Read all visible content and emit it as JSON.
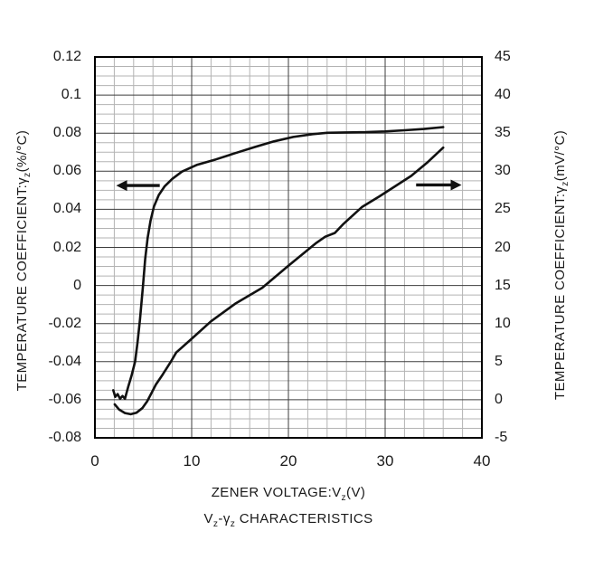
{
  "chart_data": {
    "type": "line",
    "title": "",
    "xlabel": "ZENER VOLTAGE:Vz(V)",
    "ylabel_left": "TEMPERATURE COEFFICIENT:gamma_z(%/degC)",
    "ylabel_right": "TEMPERATURE COEFFICIENT:gamma_z(mV/degC)",
    "caption": "Vz-gamma_z CHARACTERISTICS",
    "grid": "on",
    "legend": "none",
    "x_range": [
      0,
      40
    ],
    "x_major_step": 10,
    "x_minor_step": 2,
    "y_left_range": [
      -0.08,
      0.12
    ],
    "y_left_major_step": 0.02,
    "y_left_minor_step": 0.005,
    "y_right_range": [
      -5,
      45
    ],
    "x_ticks": [
      "0",
      "10",
      "20",
      "30",
      "40"
    ],
    "y_left_ticks": [
      "0.12",
      "0.1",
      "0.08",
      "0.06",
      "0.04",
      "0.02",
      "0",
      "-0.02",
      "-0.04",
      "-0.06",
      "-0.08"
    ],
    "y_right_ticks": [
      "45",
      "40",
      "35",
      "30",
      "25",
      "20",
      "15",
      "10",
      "5",
      "0",
      "-5"
    ],
    "series": [
      {
        "name": "temp-coefficient-percent-per-degC",
        "axis": "left",
        "units": "%/degC",
        "points": [
          [
            1.9,
            -0.055
          ],
          [
            2.1,
            -0.0585
          ],
          [
            2.35,
            -0.057
          ],
          [
            2.6,
            -0.0595
          ],
          [
            2.85,
            -0.058
          ],
          [
            3.1,
            -0.0595
          ],
          [
            3.45,
            -0.053
          ],
          [
            3.8,
            -0.047
          ],
          [
            4.15,
            -0.04
          ],
          [
            4.4,
            -0.03
          ],
          [
            4.65,
            -0.018
          ],
          [
            4.95,
            -0.001
          ],
          [
            5.2,
            0.014
          ],
          [
            5.45,
            0.025
          ],
          [
            5.75,
            0.034
          ],
          [
            6.1,
            0.0415
          ],
          [
            6.6,
            0.0475
          ],
          [
            7.2,
            0.052
          ],
          [
            8.0,
            0.056
          ],
          [
            9.0,
            0.0598
          ],
          [
            10.5,
            0.0633
          ],
          [
            12.5,
            0.0662
          ],
          [
            14.5,
            0.0695
          ],
          [
            16.5,
            0.0727
          ],
          [
            18.5,
            0.0757
          ],
          [
            20.5,
            0.078
          ],
          [
            22.5,
            0.0795
          ],
          [
            24.0,
            0.0802
          ],
          [
            26.0,
            0.0804
          ],
          [
            28.0,
            0.0805
          ],
          [
            30.0,
            0.0809
          ],
          [
            32.0,
            0.0815
          ],
          [
            34.0,
            0.0822
          ],
          [
            36.0,
            0.0832
          ]
        ]
      },
      {
        "name": "temp-coefficient-mV-per-degC",
        "axis": "right",
        "units": "mV/degC",
        "points": [
          [
            2.05,
            -0.6
          ],
          [
            2.5,
            -1.3
          ],
          [
            3.1,
            -1.75
          ],
          [
            3.7,
            -1.9
          ],
          [
            4.3,
            -1.7
          ],
          [
            4.9,
            -1.1
          ],
          [
            5.4,
            -0.2
          ],
          [
            5.9,
            1.0
          ],
          [
            6.3,
            2.0
          ],
          [
            7.0,
            3.3
          ],
          [
            7.8,
            4.9
          ],
          [
            8.4,
            6.2
          ],
          [
            10.0,
            8.0
          ],
          [
            12.0,
            10.3
          ],
          [
            14.5,
            12.6
          ],
          [
            17.3,
            14.7
          ],
          [
            20.0,
            17.6
          ],
          [
            22.9,
            20.6
          ],
          [
            23.8,
            21.4
          ],
          [
            24.8,
            21.9
          ],
          [
            25.7,
            23.1
          ],
          [
            27.6,
            25.3
          ],
          [
            29.4,
            26.7
          ],
          [
            31.0,
            28.0
          ],
          [
            32.7,
            29.4
          ],
          [
            34.4,
            31.2
          ],
          [
            36.0,
            33.1
          ]
        ]
      }
    ],
    "arrows": [
      {
        "name": "points-to-left-axis",
        "direction": "left",
        "axis": "left",
        "y_value": 0.0525,
        "x_tail": 6.7,
        "x_head": 2.2
      },
      {
        "name": "points-to-right-axis",
        "direction": "right",
        "axis": "right",
        "y_value": 28.2,
        "x_tail": 33.2,
        "x_head": 37.9
      }
    ],
    "colors": {
      "curve": "#111111",
      "border": "#000000",
      "grid_major": "#3d3d3d",
      "grid_minor": "#b3b3b3",
      "text": "#1a1a1a"
    }
  },
  "labels": {
    "x_title": {
      "pre": "ZENER VOLTAGE:V",
      "sub": "z",
      "post": "(V)"
    },
    "caption": {
      "p1": "V",
      "s1": "z",
      "p2": "-γ",
      "s2": "z",
      "p3": " CHARACTERISTICS"
    },
    "y_left_title": {
      "pre": "TEMPERATURE COEFFICIENT:γ",
      "sub": "z",
      "post": "(%/°C)"
    },
    "y_right_title": {
      "pre": "TEMPERATURE COEFFICIENT:γ",
      "sub": "z",
      "post": "(mV/°C)"
    }
  }
}
